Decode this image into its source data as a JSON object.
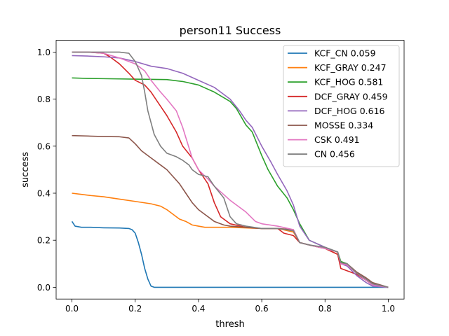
{
  "chart_data": {
    "type": "line",
    "title": "person11 Success",
    "xlabel": "thresh",
    "ylabel": "success",
    "xlim": [
      -0.05,
      1.05
    ],
    "ylim": [
      -0.05,
      1.05
    ],
    "xticks": [
      0.0,
      0.2,
      0.4,
      0.6,
      0.8,
      1.0
    ],
    "yticks": [
      0.0,
      0.2,
      0.4,
      0.6,
      0.8,
      1.0
    ],
    "xtick_labels": [
      "0.0",
      "0.2",
      "0.4",
      "0.6",
      "0.8",
      "1.0"
    ],
    "ytick_labels": [
      "0.0",
      "0.2",
      "0.4",
      "0.6",
      "0.8",
      "1.0"
    ],
    "grid": false,
    "legend_position": "top-right",
    "series": [
      {
        "name": "KCF_CN 0.059",
        "color": "#1f77b4",
        "x": [
          0,
          0.01,
          0.03,
          0.06,
          0.1,
          0.15,
          0.18,
          0.19,
          0.2,
          0.21,
          0.22,
          0.23,
          0.24,
          0.25,
          0.26,
          0.3,
          0.4,
          0.6,
          0.8,
          1.0
        ],
        "y": [
          0.28,
          0.26,
          0.255,
          0.255,
          0.253,
          0.252,
          0.25,
          0.245,
          0.23,
          0.19,
          0.14,
          0.08,
          0.035,
          0.005,
          0.0,
          0.0,
          0.0,
          0.0,
          0.0,
          0.0
        ]
      },
      {
        "name": "KCF_GRAY 0.247",
        "color": "#ff7f0e",
        "x": [
          0,
          0.03,
          0.06,
          0.1,
          0.15,
          0.2,
          0.25,
          0.28,
          0.3,
          0.32,
          0.34,
          0.36,
          0.38,
          0.4,
          0.42,
          0.5,
          0.6,
          0.65,
          0.7,
          0.72,
          0.75,
          0.8,
          0.84,
          0.85,
          0.87,
          0.9,
          0.93,
          0.95,
          1.0
        ],
        "y": [
          0.4,
          0.395,
          0.39,
          0.385,
          0.375,
          0.365,
          0.355,
          0.345,
          0.33,
          0.31,
          0.29,
          0.28,
          0.265,
          0.26,
          0.255,
          0.255,
          0.25,
          0.25,
          0.235,
          0.19,
          0.18,
          0.165,
          0.14,
          0.1,
          0.095,
          0.06,
          0.03,
          0.01,
          0.0
        ]
      },
      {
        "name": "KCF_HOG 0.581",
        "color": "#2ca02c",
        "x": [
          0,
          0.05,
          0.1,
          0.2,
          0.3,
          0.35,
          0.4,
          0.45,
          0.5,
          0.52,
          0.55,
          0.57,
          0.6,
          0.62,
          0.65,
          0.68,
          0.7,
          0.72,
          0.75,
          0.8,
          0.84,
          0.85,
          0.87,
          0.9,
          0.93,
          0.95,
          1.0
        ],
        "y": [
          0.89,
          0.888,
          0.887,
          0.885,
          0.883,
          0.875,
          0.86,
          0.83,
          0.79,
          0.76,
          0.69,
          0.66,
          0.56,
          0.5,
          0.43,
          0.38,
          0.33,
          0.27,
          0.2,
          0.17,
          0.15,
          0.11,
          0.1,
          0.06,
          0.03,
          0.01,
          0.0
        ]
      },
      {
        "name": "DCF_GRAY 0.459",
        "color": "#d62728",
        "x": [
          0,
          0.05,
          0.1,
          0.12,
          0.15,
          0.18,
          0.2,
          0.23,
          0.25,
          0.28,
          0.3,
          0.33,
          0.35,
          0.38,
          0.4,
          0.43,
          0.45,
          0.47,
          0.5,
          0.55,
          0.6,
          0.65,
          0.67,
          0.7,
          0.72,
          0.75,
          0.8,
          0.84,
          0.85,
          0.87,
          0.9,
          0.93,
          0.95,
          1.0
        ],
        "y": [
          1.0,
          1.0,
          0.995,
          0.98,
          0.95,
          0.91,
          0.88,
          0.86,
          0.83,
          0.77,
          0.73,
          0.66,
          0.6,
          0.55,
          0.5,
          0.44,
          0.36,
          0.3,
          0.27,
          0.255,
          0.25,
          0.25,
          0.23,
          0.22,
          0.19,
          0.18,
          0.165,
          0.14,
          0.08,
          0.07,
          0.055,
          0.03,
          0.01,
          0.0
        ]
      },
      {
        "name": "DCF_HOG 0.616",
        "color": "#9467bd",
        "x": [
          0,
          0.05,
          0.1,
          0.15,
          0.2,
          0.25,
          0.3,
          0.35,
          0.4,
          0.45,
          0.5,
          0.53,
          0.55,
          0.57,
          0.6,
          0.63,
          0.65,
          0.68,
          0.7,
          0.72,
          0.75,
          0.8,
          0.84,
          0.85,
          0.87,
          0.9,
          0.93,
          0.95,
          1.0
        ],
        "y": [
          0.985,
          0.983,
          0.98,
          0.975,
          0.96,
          0.94,
          0.93,
          0.91,
          0.88,
          0.85,
          0.8,
          0.75,
          0.71,
          0.68,
          0.6,
          0.53,
          0.48,
          0.41,
          0.35,
          0.26,
          0.2,
          0.17,
          0.15,
          0.1,
          0.09,
          0.05,
          0.02,
          0.005,
          0.0
        ]
      },
      {
        "name": "MOSSE 0.334",
        "color": "#8c564b",
        "x": [
          0,
          0.05,
          0.1,
          0.15,
          0.18,
          0.2,
          0.22,
          0.25,
          0.28,
          0.3,
          0.32,
          0.34,
          0.36,
          0.38,
          0.4,
          0.42,
          0.45,
          0.48,
          0.5,
          0.55,
          0.6,
          0.65,
          0.7,
          0.72,
          0.75,
          0.8,
          0.84,
          0.85,
          0.87,
          0.9,
          0.93,
          0.95,
          1.0
        ],
        "y": [
          0.645,
          0.643,
          0.641,
          0.64,
          0.635,
          0.61,
          0.58,
          0.55,
          0.52,
          0.5,
          0.47,
          0.44,
          0.4,
          0.36,
          0.33,
          0.31,
          0.28,
          0.265,
          0.26,
          0.255,
          0.25,
          0.25,
          0.245,
          0.19,
          0.18,
          0.165,
          0.15,
          0.1,
          0.1,
          0.065,
          0.04,
          0.02,
          0.0
        ]
      },
      {
        "name": "CSK 0.491",
        "color": "#e377c2",
        "x": [
          0,
          0.05,
          0.1,
          0.15,
          0.18,
          0.2,
          0.23,
          0.25,
          0.28,
          0.3,
          0.33,
          0.35,
          0.38,
          0.4,
          0.43,
          0.45,
          0.5,
          0.55,
          0.58,
          0.6,
          0.65,
          0.7,
          0.72,
          0.75,
          0.8,
          0.84,
          0.85,
          0.87,
          0.9,
          0.93,
          0.95,
          1.0
        ],
        "y": [
          1.0,
          1.0,
          0.995,
          0.975,
          0.96,
          0.95,
          0.92,
          0.88,
          0.83,
          0.8,
          0.75,
          0.68,
          0.55,
          0.5,
          0.46,
          0.43,
          0.37,
          0.32,
          0.28,
          0.27,
          0.26,
          0.245,
          0.19,
          0.18,
          0.165,
          0.15,
          0.1,
          0.095,
          0.06,
          0.03,
          0.01,
          0.0
        ]
      },
      {
        "name": "CN 0.456",
        "color": "#7f7f7f",
        "x": [
          0,
          0.05,
          0.1,
          0.15,
          0.18,
          0.2,
          0.22,
          0.23,
          0.24,
          0.26,
          0.28,
          0.3,
          0.33,
          0.35,
          0.37,
          0.38,
          0.4,
          0.43,
          0.45,
          0.48,
          0.5,
          0.52,
          0.55,
          0.6,
          0.65,
          0.7,
          0.72,
          0.75,
          0.8,
          0.84,
          0.85,
          0.87,
          0.9,
          0.93,
          0.95,
          1.0
        ],
        "y": [
          1.0,
          1.0,
          1.0,
          1.0,
          0.995,
          0.96,
          0.9,
          0.83,
          0.75,
          0.65,
          0.6,
          0.57,
          0.555,
          0.54,
          0.52,
          0.5,
          0.48,
          0.47,
          0.43,
          0.38,
          0.3,
          0.27,
          0.26,
          0.25,
          0.25,
          0.24,
          0.19,
          0.18,
          0.17,
          0.15,
          0.105,
          0.1,
          0.06,
          0.035,
          0.015,
          0.0
        ]
      }
    ]
  }
}
